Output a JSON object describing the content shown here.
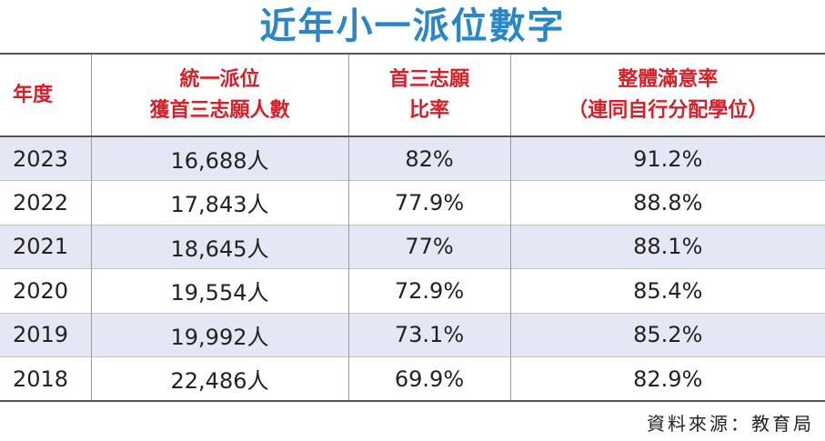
{
  "chart_data": {
    "type": "table",
    "title": "近年小一派位數字",
    "columns": [
      "年度",
      "統一派位\n獲首三志願人數",
      "首三志願\n比率",
      "整體滿意率\n（連同自行分配學位）"
    ],
    "header": {
      "year": "年度",
      "col1_line1": "統一派位",
      "col1_line2": "獲首三志願人數",
      "col2_line1": "首三志願",
      "col2_line2": "比率",
      "col3_line1": "整體滿意率",
      "col3_line2": "（連同自行分配學位）"
    },
    "rows": [
      {
        "year": "2023",
        "count": "16,688人",
        "top3_rate": "82%",
        "satisfaction": "91.2%"
      },
      {
        "year": "2022",
        "count": "17,843人",
        "top3_rate": "77.9%",
        "satisfaction": "88.8%"
      },
      {
        "year": "2021",
        "count": "18,645人",
        "top3_rate": "77%",
        "satisfaction": "88.1%"
      },
      {
        "year": "2020",
        "count": "19,554人",
        "top3_rate": "72.9%",
        "satisfaction": "85.4%"
      },
      {
        "year": "2019",
        "count": "19,992人",
        "top3_rate": "73.1%",
        "satisfaction": "85.2%"
      },
      {
        "year": "2018",
        "count": "22,486人",
        "top3_rate": "69.9%",
        "satisfaction": "82.9%"
      }
    ],
    "source": "資料來源：教育局",
    "colors": {
      "title": "#2a86c6",
      "header_text": "#d71f27",
      "stripe": "#e5e8f4"
    }
  }
}
